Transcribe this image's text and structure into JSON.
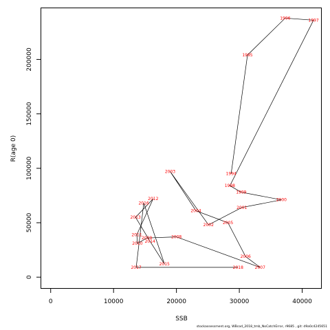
{
  "chart_data": {
    "type": "scatter",
    "connected": true,
    "xlabel": "SSB",
    "ylabel": "R(age 0)",
    "xlim": [
      -1500,
      43000
    ],
    "ylim": [
      -10000,
      247000
    ],
    "x_ticks": [
      0,
      10000,
      20000,
      30000,
      40000
    ],
    "y_ticks": [
      0,
      50000,
      100000,
      150000,
      200000
    ],
    "x_tick_labels": [
      "0",
      "10000",
      "20000",
      "30000",
      "40000"
    ],
    "y_tick_labels": [
      "0",
      "50000",
      "100000",
      "150000",
      "200000"
    ],
    "label_color": "#ff0000",
    "line_color": "#000000",
    "points": [
      {
        "year": "1994",
        "x": 28700,
        "y": 95000
      },
      {
        "year": "1995",
        "x": 31300,
        "y": 204000
      },
      {
        "year": "1996",
        "x": 37300,
        "y": 238000
      },
      {
        "year": "1997",
        "x": 41800,
        "y": 236000
      },
      {
        "year": "1998",
        "x": 28500,
        "y": 84000
      },
      {
        "year": "1999",
        "x": 30300,
        "y": 78000
      },
      {
        "year": "2000",
        "x": 36700,
        "y": 71000
      },
      {
        "year": "2001",
        "x": 30400,
        "y": 64000
      },
      {
        "year": "2002",
        "x": 25100,
        "y": 48000
      },
      {
        "year": "2003",
        "x": 19000,
        "y": 97000
      },
      {
        "year": "2004",
        "x": 23100,
        "y": 61000
      },
      {
        "year": "2005",
        "x": 28200,
        "y": 50000
      },
      {
        "year": "2006",
        "x": 31000,
        "y": 19000
      },
      {
        "year": "2007",
        "x": 33300,
        "y": 9000
      },
      {
        "year": "2008",
        "x": 20000,
        "y": 37000
      },
      {
        "year": "2009",
        "x": 15300,
        "y": 36000
      },
      {
        "year": "2010",
        "x": 13800,
        "y": 31000
      },
      {
        "year": "2011",
        "x": 13700,
        "y": 39000
      },
      {
        "year": "2012",
        "x": 16300,
        "y": 72000
      },
      {
        "year": "2013",
        "x": 13500,
        "y": 55000
      },
      {
        "year": "2014",
        "x": 15800,
        "y": 33000
      },
      {
        "year": "2015",
        "x": 18100,
        "y": 12000
      },
      {
        "year": "2016",
        "x": 14800,
        "y": 68000
      },
      {
        "year": "2017",
        "x": 13600,
        "y": 9000
      },
      {
        "year": "2018",
        "x": 29800,
        "y": 9000
      }
    ]
  },
  "footer": "stockassessment.org, WBcod_2018_tmb_NoCatchError, r9685 , git: d9a0c4245651"
}
